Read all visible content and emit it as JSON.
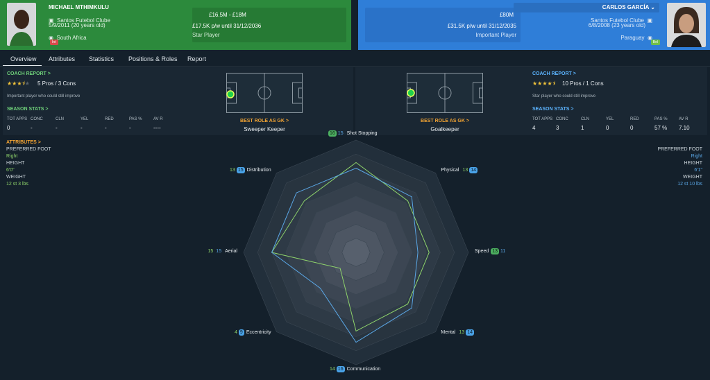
{
  "left": {
    "name": "MICHAEL MTHIMKULU",
    "club": "Santos Futebol Clube",
    "dob": "5/9/2011 (20 years old)",
    "nation": "South Africa",
    "nation_badge": "Int",
    "value": "£16.5M - £18M",
    "contract": "£17.5K p/w until 31/12/2036",
    "status": "Star Player"
  },
  "right": {
    "name": "CARLOS GARCÍA",
    "club": "Santos Futebol Clube",
    "dob": "6/8/2008 (23 years old)",
    "nation": "Paraguay",
    "nation_badge": "Bel",
    "value": "£80M",
    "contract": "£31.5K p/w until 31/12/2035",
    "status": "Important Player"
  },
  "tabs": [
    "Overview",
    "Attributes",
    "Statistics",
    "Positions & Roles",
    "Report"
  ],
  "coach_report_label": "COACH REPORT >",
  "season_stats_label": "SEASON STATS >",
  "stat_headers": [
    "TOT APPS",
    "CONC",
    "CLN",
    "YEL",
    "RED",
    "PAS %",
    "AV R"
  ],
  "left_panel": {
    "stars": 3.5,
    "pros_cons": "5 Pros / 3 Cons",
    "summary": "Important player who could still improve",
    "stats": [
      "0",
      "-",
      "-",
      "-",
      "-",
      "-",
      "----"
    ],
    "best_role_label": "BEST ROLE AS GK >",
    "best_role": "Sweeper Keeper"
  },
  "right_panel": {
    "stars": 4.5,
    "pros_cons": "10 Pros / 1 Cons",
    "summary": "Star player who could still improve",
    "stats": [
      "4",
      "3",
      "1",
      "0",
      "0",
      "57 %",
      "7.10"
    ],
    "best_role_label": "BEST ROLE AS GK >",
    "best_role": "Goalkeeper"
  },
  "attributes": {
    "label": "ATTRIBUTES >",
    "left": {
      "preferred_foot_label": "PREFERRED FOOT",
      "preferred_foot": "Right",
      "height_label": "HEIGHT",
      "height": "6'0\"",
      "weight_label": "WEIGHT",
      "weight": "12 st 3 lbs"
    },
    "right": {
      "preferred_foot_label": "PREFERRED FOOT",
      "preferred_foot": "Right",
      "height_label": "HEIGHT",
      "height": "6'1\"",
      "weight_label": "WEIGHT",
      "weight": "12 st 10 lbs"
    }
  },
  "chart_data": {
    "type": "radar",
    "axes": [
      "Shot Stopping",
      "Physical",
      "Speed",
      "Mental",
      "Communication",
      "Eccentricity",
      "Aerial",
      "Distribution"
    ],
    "max": 20,
    "series": [
      {
        "name": "MICHAEL MTHIMKULU",
        "color": "#8fd46b",
        "values": [
          16,
          13,
          13,
          13,
          14,
          4,
          15,
          13
        ]
      },
      {
        "name": "CARLOS GARCÍA",
        "color": "#5aa7e6",
        "values": [
          15,
          14,
          11,
          14,
          16,
          9,
          15,
          15
        ]
      }
    ]
  }
}
